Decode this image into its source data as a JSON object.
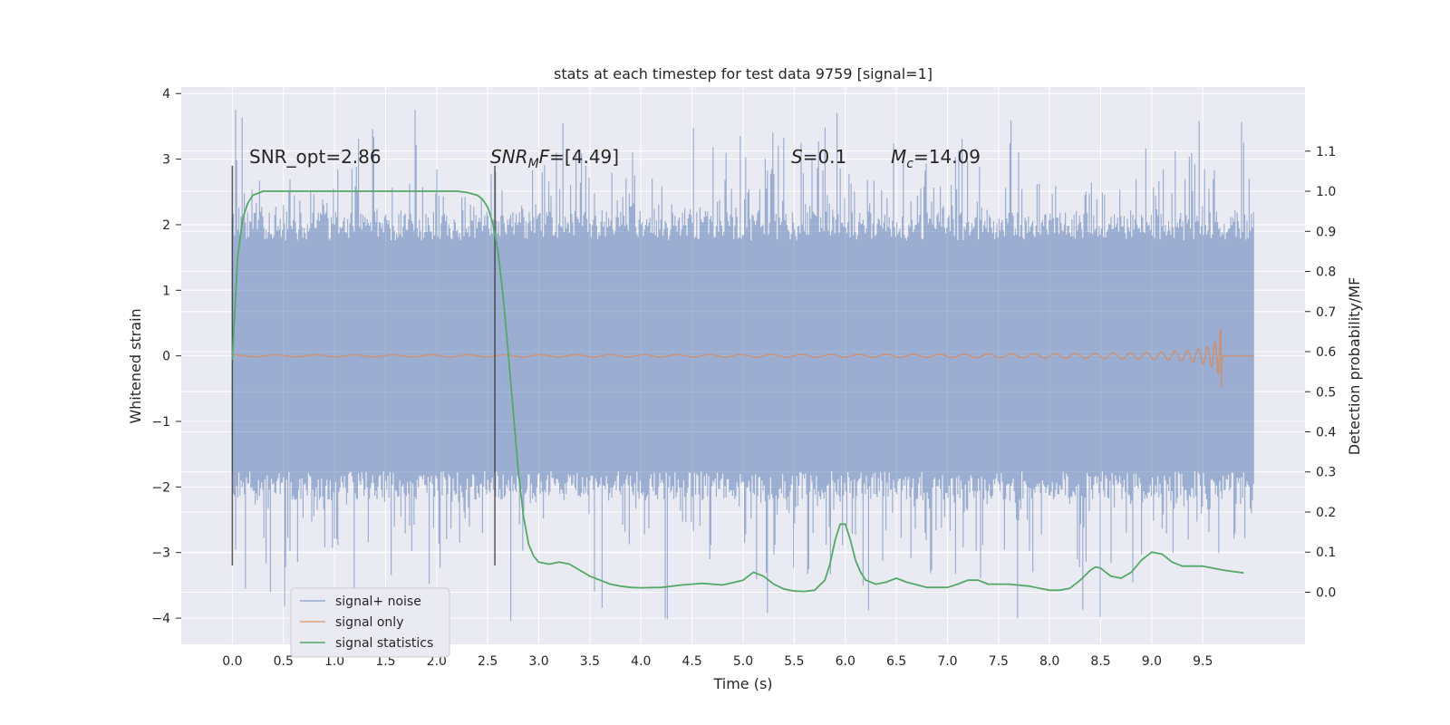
{
  "chart_data": {
    "type": "line",
    "title": "stats at each timestep for test data 9759 [signal=1]",
    "xlabel": "Time (s)",
    "ylabel": "Whitened strain",
    "y2label": "Detection probability/MF",
    "xlim": [
      -0.5,
      10.5
    ],
    "ylim": [
      -4.4,
      4.1
    ],
    "y2lim": [
      -0.13,
      1.26
    ],
    "x_ticks": [
      "0.0",
      "0.5",
      "1.0",
      "1.5",
      "2.0",
      "2.5",
      "3.0",
      "3.5",
      "4.0",
      "4.5",
      "5.0",
      "5.5",
      "6.0",
      "6.5",
      "7.0",
      "7.5",
      "8.0",
      "8.5",
      "9.0",
      "9.5"
    ],
    "y_ticks": [
      "4",
      "3",
      "2",
      "1",
      "0",
      "−1",
      "−2",
      "−3",
      "−4"
    ],
    "y2_ticks": [
      "1.1",
      "1.0",
      "0.9",
      "0.8",
      "0.7",
      "0.6",
      "0.5",
      "0.4",
      "0.3",
      "0.2",
      "0.1",
      "0.0"
    ],
    "grid": true,
    "legend_position": "lower-left",
    "colors": {
      "background": "#eaeaf2",
      "grid": "#ffffff",
      "noise": "#4c72b0",
      "signal": "#dd8452",
      "stats": "#55a868",
      "marker": "#333333"
    },
    "series": [
      {
        "name": "signal+ noise",
        "description": "whitened strain, dense noise roughly uniform in time",
        "x_range": [
          0.0,
          10.0
        ],
        "typical_envelope": [
          -2.2,
          2.2
        ],
        "peak_range": [
          -4.05,
          3.75
        ]
      },
      {
        "name": "signal only",
        "description": "chirp growing in amplitude toward merger",
        "x_range": [
          0.0,
          10.0
        ],
        "merger_time": 9.68,
        "peak_amplitude": [
          0.68,
          -0.48
        ]
      },
      {
        "name": "signal statistics",
        "axis": "right",
        "x": [
          0.0,
          0.05,
          0.1,
          0.15,
          0.2,
          0.3,
          0.5,
          1.0,
          1.5,
          2.0,
          2.2,
          2.3,
          2.4,
          2.45,
          2.5,
          2.55,
          2.6,
          2.65,
          2.7,
          2.75,
          2.8,
          2.85,
          2.9,
          2.95,
          3.0,
          3.1,
          3.2,
          3.3,
          3.4,
          3.5,
          3.6,
          3.7,
          3.8,
          3.9,
          4.0,
          4.2,
          4.4,
          4.6,
          4.8,
          5.0,
          5.1,
          5.2,
          5.3,
          5.4,
          5.5,
          5.6,
          5.7,
          5.8,
          5.85,
          5.9,
          5.95,
          6.0,
          6.05,
          6.1,
          6.15,
          6.2,
          6.3,
          6.4,
          6.5,
          6.6,
          6.8,
          7.0,
          7.1,
          7.2,
          7.3,
          7.4,
          7.6,
          7.8,
          7.9,
          8.0,
          8.1,
          8.2,
          8.3,
          8.4,
          8.45,
          8.5,
          8.6,
          8.7,
          8.8,
          8.9,
          9.0,
          9.1,
          9.2,
          9.3,
          9.5,
          9.7,
          9.9
        ],
        "values": [
          0.58,
          0.83,
          0.93,
          0.97,
          0.99,
          1.0,
          1.0,
          1.0,
          1.0,
          1.0,
          1.0,
          0.997,
          0.99,
          0.98,
          0.96,
          0.92,
          0.85,
          0.74,
          0.6,
          0.45,
          0.3,
          0.19,
          0.12,
          0.09,
          0.075,
          0.07,
          0.075,
          0.07,
          0.055,
          0.04,
          0.03,
          0.02,
          0.015,
          0.012,
          0.011,
          0.012,
          0.018,
          0.022,
          0.018,
          0.03,
          0.05,
          0.04,
          0.02,
          0.008,
          0.003,
          0.002,
          0.005,
          0.03,
          0.07,
          0.13,
          0.17,
          0.17,
          0.13,
          0.08,
          0.05,
          0.03,
          0.02,
          0.025,
          0.035,
          0.025,
          0.012,
          0.012,
          0.02,
          0.03,
          0.03,
          0.02,
          0.02,
          0.015,
          0.01,
          0.005,
          0.005,
          0.01,
          0.03,
          0.055,
          0.063,
          0.06,
          0.04,
          0.035,
          0.05,
          0.08,
          0.1,
          0.095,
          0.075,
          0.065,
          0.065,
          0.055,
          0.048
        ]
      }
    ],
    "markers": [
      {
        "x": 0.0,
        "y_range": [
          -3.2,
          2.9
        ]
      },
      {
        "x": 2.57,
        "y_range": [
          -3.2,
          2.9
        ]
      }
    ],
    "annotations": [
      {
        "parts": [
          {
            "text": "SNR_opt=2.86",
            "italic": false
          }
        ]
      },
      {
        "parts": [
          {
            "text": "SNR",
            "italic": true
          },
          {
            "text": "M",
            "italic": true,
            "sub": true
          },
          {
            "text": "F",
            "italic": true
          },
          {
            "text": "=[4.49]",
            "italic": false
          }
        ]
      },
      {
        "parts": [
          {
            "text": "S",
            "italic": true
          },
          {
            "text": "=0.1",
            "italic": false
          }
        ]
      },
      {
        "parts": [
          {
            "text": "M",
            "italic": true
          },
          {
            "text": "c",
            "italic": true,
            "sub": true
          },
          {
            "text": "=14.09",
            "italic": false
          }
        ]
      }
    ],
    "legend": [
      "signal+ noise",
      "signal only",
      "signal statistics"
    ]
  }
}
